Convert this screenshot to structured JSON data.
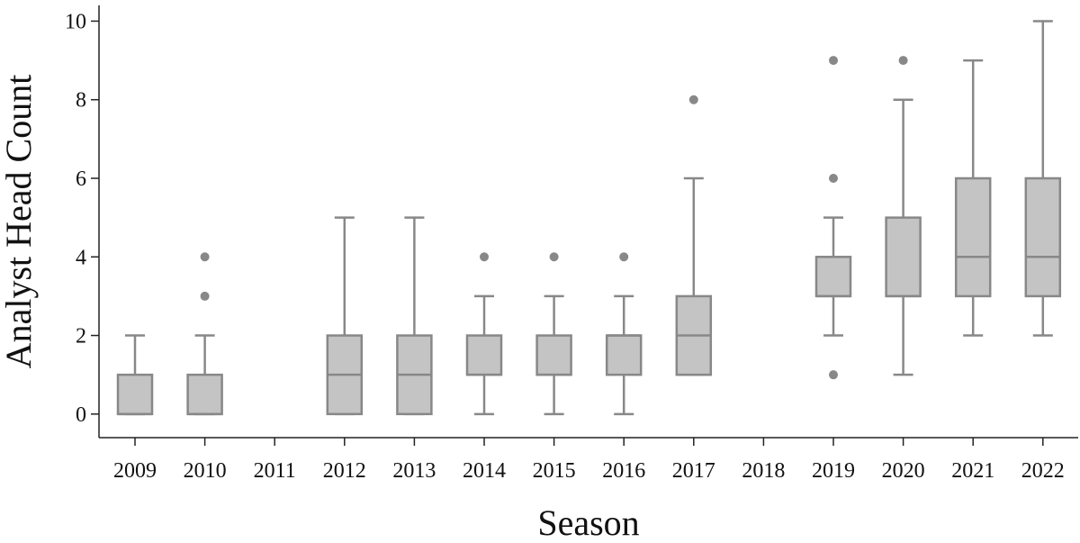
{
  "chart_data": {
    "type": "boxplot",
    "xlabel": "Season",
    "ylabel": "Analyst Head Count",
    "categories": [
      "2009",
      "2010",
      "2011",
      "2012",
      "2013",
      "2014",
      "2015",
      "2016",
      "2017",
      "2018",
      "2019",
      "2020",
      "2021",
      "2022"
    ],
    "yticks": [
      0,
      2,
      4,
      6,
      8,
      10
    ],
    "ylim": [
      -0.6,
      10.4
    ],
    "grid": false,
    "colors": {
      "box_fill": "#c4c4c4",
      "box_stroke": "#888888",
      "axis": "#222222"
    },
    "boxes": [
      {
        "category": "2009",
        "whisker_low": 0,
        "q1": 0,
        "median": 0,
        "q3": 1,
        "whisker_high": 2,
        "outliers": []
      },
      {
        "category": "2010",
        "whisker_low": 0,
        "q1": 0,
        "median": 0,
        "q3": 1,
        "whisker_high": 2,
        "outliers": [
          3,
          4
        ]
      },
      {
        "category": "2012",
        "whisker_low": 0,
        "q1": 0,
        "median": 1,
        "q3": 2,
        "whisker_high": 5,
        "outliers": []
      },
      {
        "category": "2013",
        "whisker_low": 0,
        "q1": 0,
        "median": 1,
        "q3": 2,
        "whisker_high": 5,
        "outliers": []
      },
      {
        "category": "2014",
        "whisker_low": 0,
        "q1": 1,
        "median": 1,
        "q3": 2,
        "whisker_high": 3,
        "outliers": [
          4
        ]
      },
      {
        "category": "2015",
        "whisker_low": 0,
        "q1": 1,
        "median": 1,
        "q3": 2,
        "whisker_high": 3,
        "outliers": [
          4
        ]
      },
      {
        "category": "2016",
        "whisker_low": 0,
        "q1": 1,
        "median": 2,
        "q3": 2,
        "whisker_high": 3,
        "outliers": [
          4
        ]
      },
      {
        "category": "2017",
        "whisker_low": 1,
        "q1": 1,
        "median": 2,
        "q3": 3,
        "whisker_high": 6,
        "outliers": [
          8
        ]
      },
      {
        "category": "2019",
        "whisker_low": 2,
        "q1": 3,
        "median": 3,
        "q3": 4,
        "whisker_high": 5,
        "outliers": [
          1,
          6,
          9
        ]
      },
      {
        "category": "2020",
        "whisker_low": 1,
        "q1": 3,
        "median": 3,
        "q3": 5,
        "whisker_high": 8,
        "outliers": [
          9
        ]
      },
      {
        "category": "2021",
        "whisker_low": 2,
        "q1": 3,
        "median": 4,
        "q3": 6,
        "whisker_high": 9,
        "outliers": []
      },
      {
        "category": "2022",
        "whisker_low": 2,
        "q1": 3,
        "median": 4,
        "q3": 6,
        "whisker_high": 10,
        "outliers": []
      }
    ]
  }
}
